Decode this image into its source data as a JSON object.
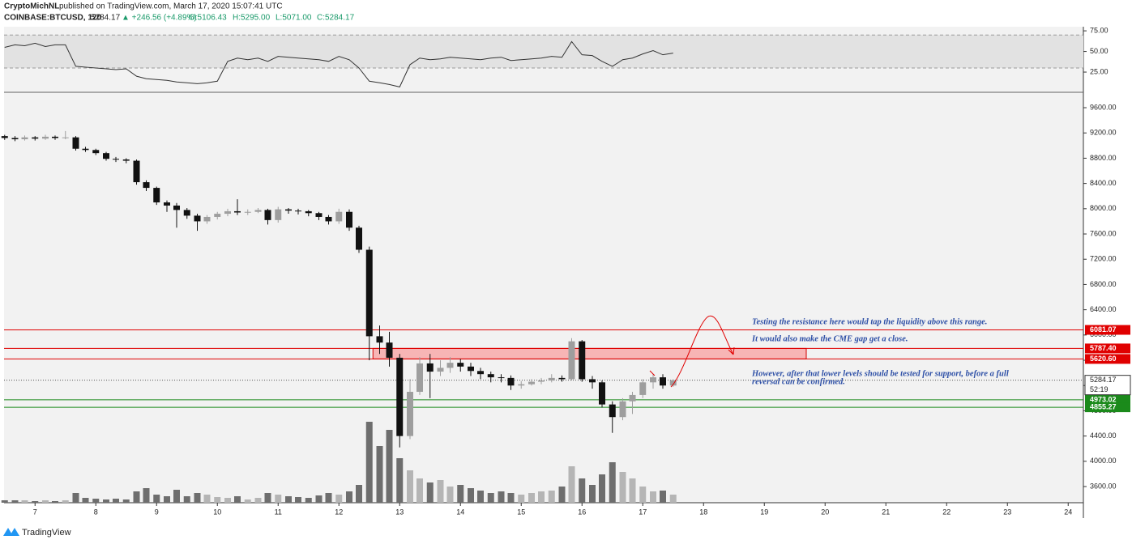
{
  "chart_data": {
    "type": "candlestick",
    "header": {
      "author": "CryptoMichNL",
      "published": "published on TradingView.com, March 17, 2020 15:07:41 UTC",
      "symbol": "COINBASE:BTCUSD, 120",
      "price": "5284.17",
      "change": "▲ +246.56 (+4.89%)",
      "ohlc": [
        "O:5106.43",
        "H:5295.00",
        "L:5071.00",
        "C:5284.17"
      ]
    },
    "footer": "TradingView",
    "xlim": [
      6.49,
      24.25
    ],
    "xticks": [
      7,
      8,
      9,
      10,
      11,
      12,
      13,
      14,
      15,
      16,
      17,
      18,
      19,
      20,
      21,
      22,
      23,
      24
    ],
    "ylim": [
      3344,
      9831
    ],
    "yticks": [
      {
        "value": 3600,
        "label": "3600.00"
      },
      {
        "value": 4000,
        "label": "4000.00"
      },
      {
        "value": 4400,
        "label": "4400.00"
      },
      {
        "value": 4800,
        "label": "4800.00"
      },
      {
        "value": 5200,
        "label": "5200.00"
      },
      {
        "value": 5600,
        "label": "5600.00"
      },
      {
        "value": 6000,
        "label": "6000.00"
      },
      {
        "value": 6400,
        "label": "6400.00"
      },
      {
        "value": 6800,
        "label": "6800.00"
      },
      {
        "value": 7200,
        "label": "7200.00"
      },
      {
        "value": 7600,
        "label": "7600.00"
      },
      {
        "value": 8000,
        "label": "8000.00"
      },
      {
        "value": 8400,
        "label": "8400.00"
      },
      {
        "value": 8800,
        "label": "8800.00"
      },
      {
        "value": 9200,
        "label": "9200.00"
      },
      {
        "value": 9600,
        "label": "9600.00"
      }
    ],
    "x": [
      6.5,
      6.67,
      6.83,
      7,
      7.17,
      7.33,
      7.5,
      7.67,
      7.83,
      8,
      8.17,
      8.33,
      8.5,
      8.67,
      8.83,
      9,
      9.17,
      9.33,
      9.5,
      9.67,
      9.83,
      10,
      10.17,
      10.33,
      10.5,
      10.67,
      10.83,
      11,
      11.17,
      11.33,
      11.5,
      11.67,
      11.83,
      12,
      12.17,
      12.33,
      12.5,
      12.67,
      12.83,
      13,
      13.17,
      13.33,
      13.5,
      13.67,
      13.83,
      14,
      14.17,
      14.33,
      14.5,
      14.67,
      14.83,
      15,
      15.17,
      15.33,
      15.5,
      15.67,
      15.83,
      16,
      16.17,
      16.33,
      16.5,
      16.67,
      16.83,
      17,
      17.17,
      17.33,
      17.5
    ],
    "open": [
      9150,
      9120,
      9100,
      9130,
      9110,
      9140,
      9120,
      9130,
      8950,
      8930,
      8880,
      8790,
      8780,
      8760,
      8420,
      8330,
      8100,
      8050,
      7980,
      7890,
      7800,
      7870,
      7920,
      7960,
      7940,
      7950,
      7980,
      7820,
      7990,
      7970,
      7960,
      7930,
      7870,
      7800,
      7950,
      7700,
      7350,
      5980,
      5880,
      5640,
      4400,
      5100,
      5550,
      5420,
      5480,
      5560,
      5500,
      5430,
      5380,
      5330,
      5320,
      5200,
      5220,
      5260,
      5280,
      5320,
      5300,
      5900,
      5300,
      5250,
      4900,
      4700,
      4950,
      5050,
      5250,
      5330,
      5200
    ],
    "high": [
      9170,
      9150,
      9160,
      9150,
      9170,
      9160,
      9230,
      9150,
      8980,
      8950,
      8900,
      8820,
      8800,
      8780,
      8450,
      8350,
      8130,
      8090,
      8010,
      7920,
      7900,
      7950,
      8000,
      8150,
      7990,
      8010,
      8000,
      8030,
      8010,
      8000,
      7980,
      7950,
      7900,
      8000,
      7990,
      7730,
      7400,
      6150,
      6050,
      5700,
      5300,
      5650,
      5700,
      5600,
      5650,
      5620,
      5560,
      5480,
      5420,
      5380,
      5360,
      5270,
      5300,
      5320,
      5380,
      5360,
      5950,
      5920,
      5350,
      5280,
      4950,
      5000,
      5100,
      5300,
      5380,
      5380,
      5300
    ],
    "low": [
      9090,
      9070,
      9080,
      9080,
      9090,
      9090,
      9100,
      8920,
      8900,
      8850,
      8760,
      8740,
      8720,
      8380,
      8280,
      8060,
      7950,
      7700,
      7840,
      7650,
      7760,
      7830,
      7880,
      7900,
      7900,
      7930,
      7750,
      7780,
      7920,
      7910,
      7880,
      7820,
      7750,
      7760,
      7650,
      7300,
      5600,
      5700,
      5500,
      4220,
      4350,
      5050,
      5000,
      5350,
      5400,
      5420,
      5350,
      5300,
      5250,
      5250,
      5130,
      5150,
      5200,
      5220,
      5250,
      5260,
      5280,
      5260,
      5150,
      4850,
      4450,
      4650,
      4750,
      5000,
      5150,
      5150,
      5180
    ],
    "close": [
      9120,
      9100,
      9130,
      9110,
      9140,
      9120,
      9130,
      8950,
      8930,
      8880,
      8790,
      8780,
      8760,
      8420,
      8330,
      8100,
      8050,
      7980,
      7890,
      7800,
      7870,
      7920,
      7960,
      7940,
      7950,
      7980,
      7820,
      7990,
      7970,
      7960,
      7930,
      7870,
      7800,
      7950,
      7700,
      7350,
      5980,
      5880,
      5640,
      4400,
      5100,
      5550,
      5420,
      5480,
      5560,
      5500,
      5430,
      5380,
      5330,
      5320,
      5200,
      5220,
      5260,
      5280,
      5320,
      5300,
      5900,
      5300,
      5250,
      4900,
      4700,
      4950,
      5050,
      5250,
      5330,
      5200,
      5284
    ],
    "volume": [
      3,
      3,
      3,
      2,
      3,
      2,
      3,
      12,
      6,
      5,
      4,
      5,
      4,
      14,
      18,
      10,
      8,
      16,
      8,
      12,
      10,
      7,
      6,
      8,
      4,
      6,
      12,
      10,
      8,
      7,
      6,
      9,
      12,
      10,
      14,
      22,
      100,
      70,
      90,
      55,
      40,
      30,
      25,
      28,
      20,
      22,
      18,
      15,
      12,
      14,
      12,
      10,
      12,
      14,
      15,
      20,
      45,
      30,
      22,
      35,
      50,
      38,
      30,
      20,
      14,
      15,
      10
    ],
    "up_color": "#9e9e9e",
    "down_color": "#111111",
    "rsi": {
      "ylim": [
        1.5,
        80
      ],
      "yticks": [
        {
          "value": 25,
          "label": "25.00"
        },
        {
          "value": 50,
          "label": "50.00"
        },
        {
          "value": 75,
          "label": "75.00"
        }
      ],
      "band": [
        30,
        70
      ],
      "values": [
        55,
        58,
        57,
        60,
        56,
        58,
        58,
        32,
        31,
        30,
        29,
        28,
        29,
        20,
        17,
        16,
        15,
        13,
        12,
        11,
        12,
        14,
        38,
        42,
        40,
        42,
        38,
        44,
        43,
        42,
        41,
        40,
        38,
        44,
        40,
        30,
        14,
        12,
        10,
        7,
        34,
        42,
        40,
        41,
        43,
        42,
        41,
        40,
        42,
        43,
        39,
        40,
        41,
        42,
        44,
        43,
        62,
        46,
        45,
        38,
        32,
        40,
        42,
        47,
        51,
        46,
        48
      ]
    },
    "levels": [
      {
        "value": 6081.07,
        "color": "#e00000"
      },
      {
        "value": 5787.4,
        "label": "5787.40",
        "color": "#e00000"
      },
      {
        "value": 5620.6,
        "label": "5620.60",
        "color": "#e00000"
      },
      {
        "value": 4973.02,
        "color": "#1b8a1b"
      },
      {
        "value": 4855.27,
        "color": "#1b8a1b"
      }
    ],
    "last_price": 5284.17,
    "countdown": "52:19",
    "zone": {
      "from": 12.56,
      "to": 19.69,
      "low": 5620.6,
      "high": 5787.4
    },
    "annotations": [
      "Testing the resistance here would tap the liquidity above this range.",
      "It would also make the CME gap get a close.",
      "However, after that lower levels should be tested for support, before a full",
      "reversal can be confirmed."
    ]
  }
}
